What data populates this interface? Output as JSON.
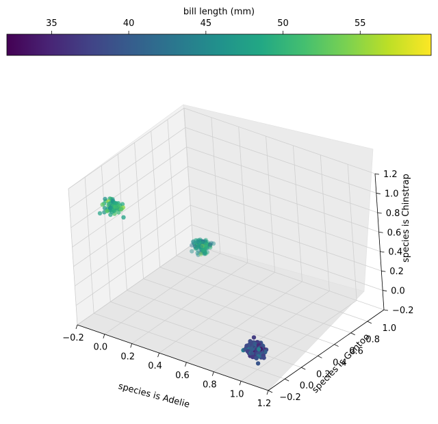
{
  "chart_data": {
    "type": "scatter3d",
    "xlabel": "species is Adelie",
    "ylabel": "species is Gentoo",
    "zlabel": "species is Chinstrap",
    "xlim": [
      -0.2,
      1.2
    ],
    "ylim": [
      -0.2,
      1.2
    ],
    "zlim": [
      -0.2,
      1.2
    ],
    "xticks": [
      -0.2,
      0.0,
      0.2,
      0.4,
      0.6,
      0.8,
      1.0,
      1.2
    ],
    "yticks": [
      -0.2,
      0.0,
      0.2,
      0.4,
      0.6,
      0.8,
      1.0
    ],
    "zticks": [
      -0.2,
      0.0,
      0.2,
      0.4,
      0.6,
      0.8,
      1.0,
      1.2
    ],
    "xtick_labels": [
      "−0.2",
      "0.0",
      "0.2",
      "0.4",
      "0.6",
      "0.8",
      "1.0",
      "1.2"
    ],
    "ytick_labels": [
      "−0.2",
      "0.0",
      "0.2",
      "0.4",
      "0.6",
      "0.8",
      "1.0"
    ],
    "ztick_labels": [
      "−0.2",
      "0.0",
      "0.2",
      "0.4",
      "0.6",
      "0.8",
      "1.0",
      "1.2"
    ],
    "grid": true,
    "colorbar": {
      "label": "bill length (mm)",
      "min": 32.1,
      "max": 59.6,
      "ticks": [
        35,
        40,
        45,
        50,
        55
      ],
      "tick_labels": [
        "35",
        "40",
        "45",
        "50",
        "55"
      ],
      "colormap": "viridis"
    },
    "series": [
      {
        "name": "Adelie",
        "center": [
          1.0,
          0.0,
          0.0
        ],
        "jitter": 0.08,
        "count": 146,
        "bill_length_range": [
          32.1,
          46.0
        ],
        "bill_length_mean": 38.8
      },
      {
        "name": "Gentoo",
        "center": [
          0.0,
          1.0,
          0.0
        ],
        "jitter": 0.08,
        "count": 119,
        "bill_length_range": [
          40.9,
          59.6
        ],
        "bill_length_mean": 47.5
      },
      {
        "name": "Chinstrap",
        "center": [
          0.0,
          0.0,
          1.0
        ],
        "jitter": 0.08,
        "count": 68,
        "bill_length_range": [
          40.9,
          58.0
        ],
        "bill_length_mean": 48.8
      }
    ]
  }
}
